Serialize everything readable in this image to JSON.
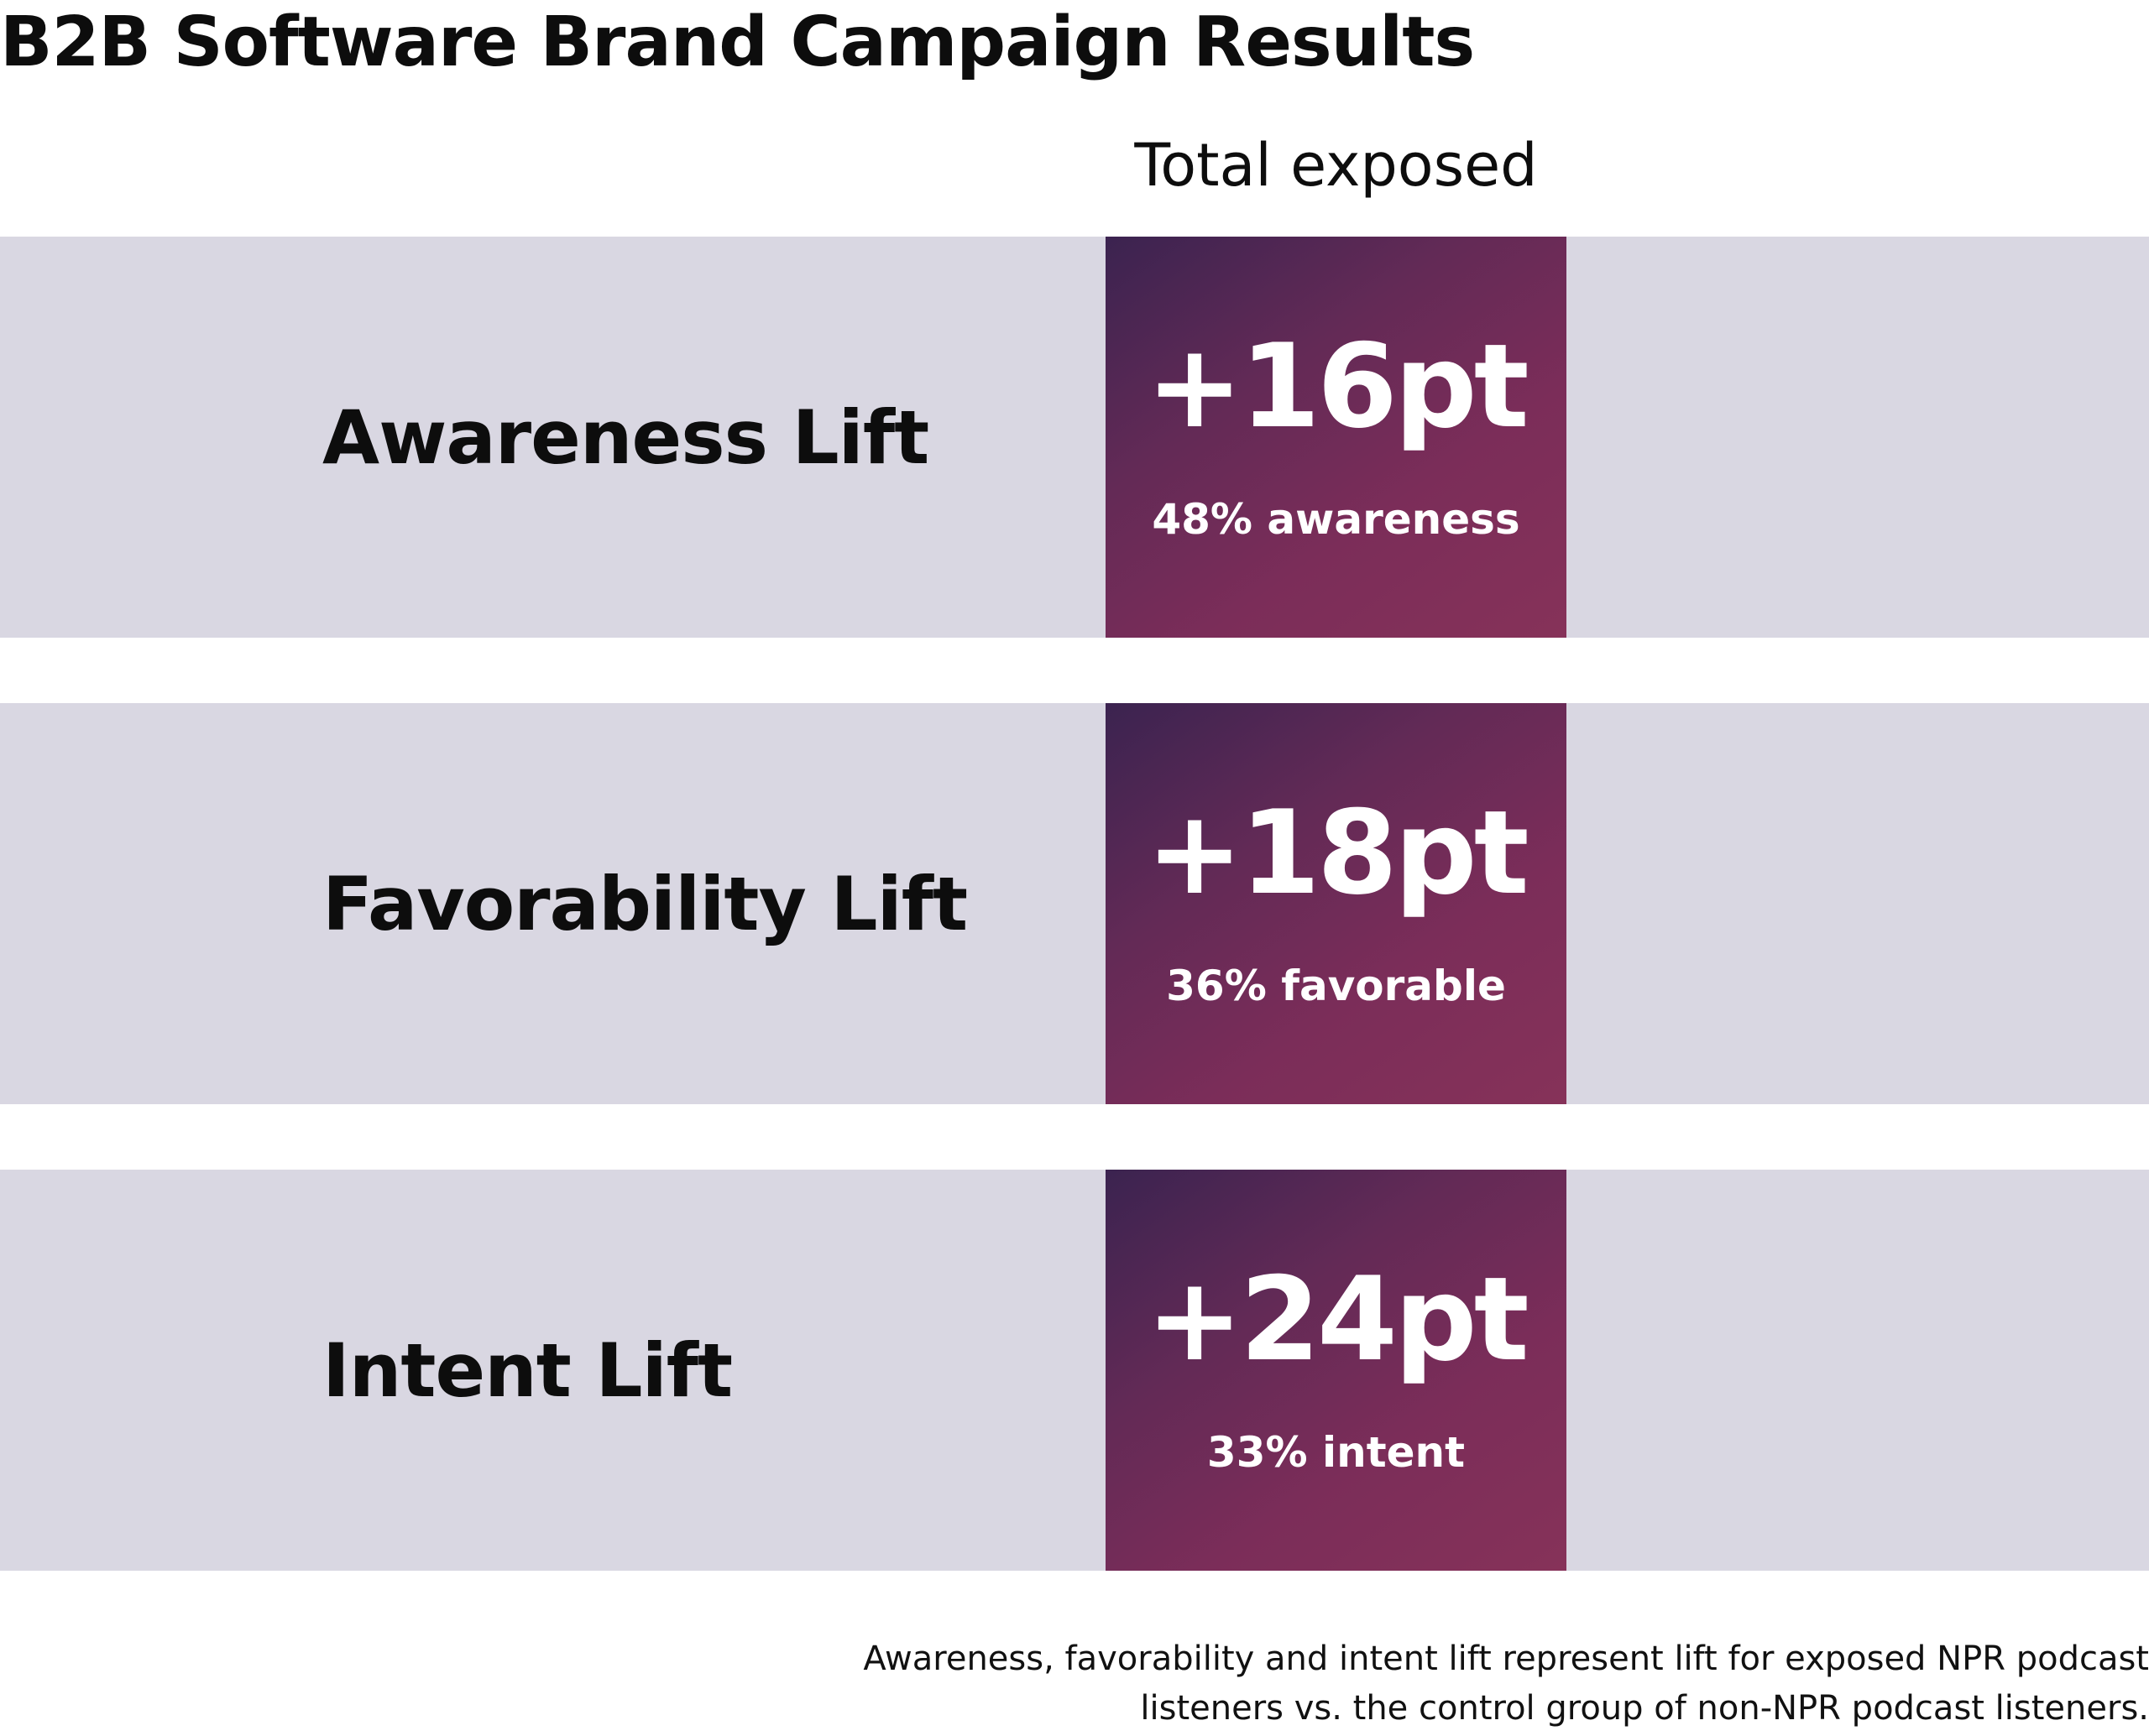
{
  "title": "B2B Software Brand Campaign Results",
  "column_header": "Total exposed",
  "colors": {
    "row_background": "#d9d7e2",
    "tile_gradient_start": "#3b2350",
    "tile_gradient_end": "#863259",
    "tile_text": "#ffffff"
  },
  "chart_data": {
    "type": "table",
    "columns": [
      "Total exposed"
    ],
    "rows": [
      {
        "label": "Awareness Lift",
        "value": "+16pt",
        "lift_pt": 16,
        "detail": "48% awareness",
        "detail_pct": 48
      },
      {
        "label": "Favorability Lift",
        "value": "+18pt",
        "lift_pt": 18,
        "detail": "36% favorable",
        "detail_pct": 36
      },
      {
        "label": "Intent Lift",
        "value": "+24pt",
        "lift_pt": 24,
        "detail": "33% intent",
        "detail_pct": 33
      }
    ]
  },
  "footnote": {
    "line1": "Awareness, favorability and intent lift represent lift for exposed NPR podcast",
    "line2": "listeners vs. the control group of non-NPR podcast listeners."
  }
}
